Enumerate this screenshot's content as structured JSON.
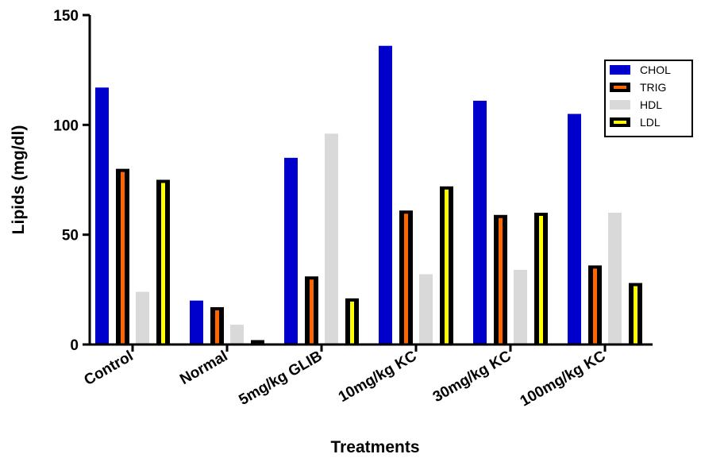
{
  "chart_data": {
    "type": "bar",
    "title": "",
    "xlabel": "Treatments",
    "ylabel": "Lipids (mg/dl)",
    "ylim": [
      0,
      150
    ],
    "yticks": [
      0,
      50,
      100,
      150
    ],
    "grid": false,
    "legend_position": "top-right",
    "categories": [
      "Control",
      "Normal",
      "5mg/kg GLIB",
      "10mg/kg KC",
      "30mg/kg KC",
      "100mg/kg KC"
    ],
    "series": [
      {
        "name": "CHOL",
        "color": "#0000cc",
        "border": "#0000cc",
        "values": [
          117,
          20,
          85,
          136,
          111,
          105
        ]
      },
      {
        "name": "TRIG",
        "color": "#ff6600",
        "border": "#000000",
        "values": [
          80,
          17,
          31,
          61,
          59,
          36
        ]
      },
      {
        "name": "HDL",
        "color": "#d9d9d9",
        "border": "#d9d9d9",
        "values": [
          24,
          9,
          96,
          32,
          34,
          60
        ]
      },
      {
        "name": "LDL",
        "color": "#ffff00",
        "border": "#000000",
        "values": [
          75,
          2,
          21,
          72,
          60,
          28
        ]
      }
    ]
  }
}
